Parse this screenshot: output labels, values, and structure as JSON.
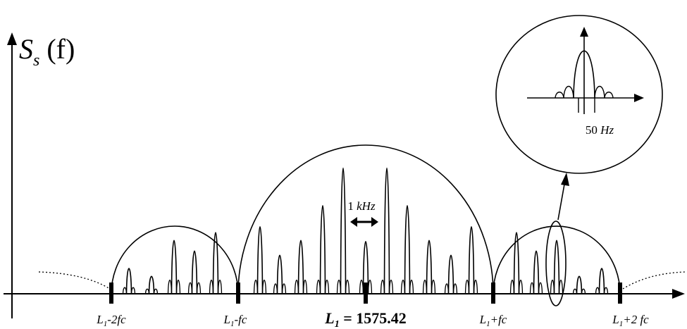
{
  "yaxis": {
    "symbol": "S",
    "subscript": "s",
    "arg": "(f)"
  },
  "ticks": [
    {
      "pre": "L",
      "sub": "1",
      "post": "-2fc"
    },
    {
      "pre": "L",
      "sub": "1",
      "post": "-fc"
    },
    {
      "pre": "L",
      "sub": "1",
      "post": "+fc"
    },
    {
      "pre": "L",
      "sub": "1",
      "post": "+2 fc"
    }
  ],
  "center_label": {
    "pre": "L",
    "sub": "1",
    "post": " = 1575.42"
  },
  "spacing_label": {
    "num": "1 ",
    "unit": "kHz"
  },
  "inset_label": {
    "num": "50 ",
    "unit": "Hz"
  },
  "colors": {
    "stroke": "#000000",
    "background": "#ffffff"
  }
}
